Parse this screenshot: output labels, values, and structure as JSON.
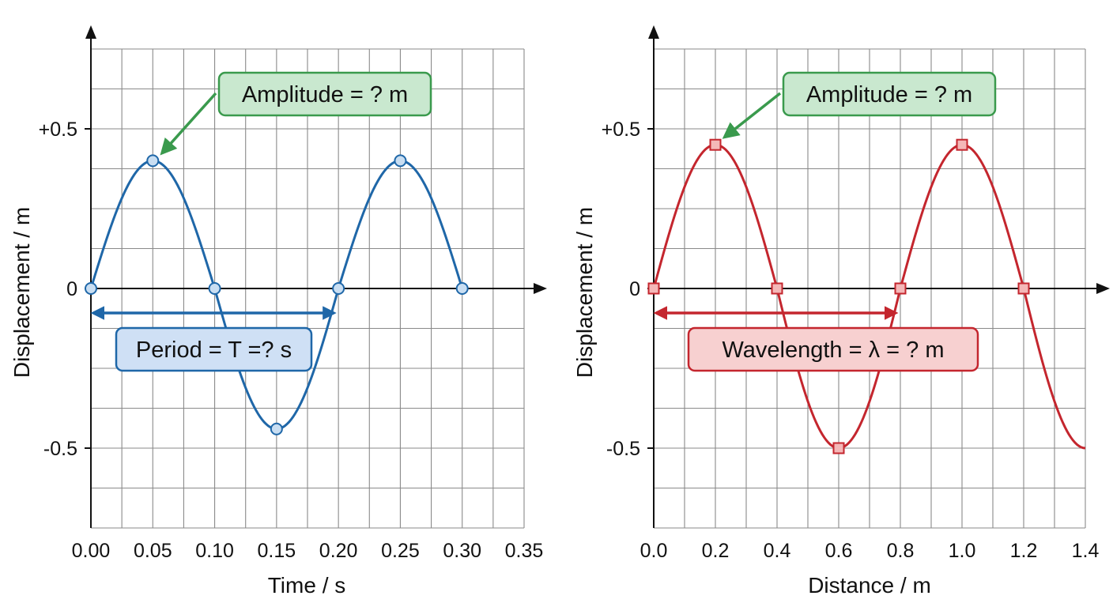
{
  "chart_data": [
    {
      "type": "line",
      "xlabel": "Time / s",
      "ylabel": "Displacement / m",
      "xlim": [
        0,
        0.35
      ],
      "ylim": [
        -0.75,
        0.75
      ],
      "x_ticks": [
        "0.00",
        "0.05",
        "0.10",
        "0.15",
        "0.20",
        "0.25",
        "0.30",
        "0.35"
      ],
      "y_ticks": [
        {
          "value": 0.5,
          "label": "+0.5"
        },
        {
          "value": 0,
          "label": "0"
        },
        {
          "value": -0.5,
          "label": "-0.5"
        }
      ],
      "grid": true,
      "series": [
        {
          "color": "#1f67a8",
          "marker": "circle",
          "x": [
            0.0,
            0.05,
            0.1,
            0.15,
            0.2,
            0.25,
            0.3
          ],
          "y": [
            0.0,
            0.4,
            0.0,
            -0.44,
            0.0,
            0.4,
            0.0
          ]
        }
      ],
      "annotations": [
        {
          "kind": "callout",
          "text": "Amplitude = ? m",
          "color": "#3a9a4d",
          "fill": "#c9e8cf",
          "target": [
            0.05,
            0.4
          ]
        },
        {
          "kind": "span",
          "text": "Period = T =? s",
          "color": "#1f67a8",
          "fill": "#cfe0f5",
          "from": 0.0,
          "to": 0.2
        }
      ]
    },
    {
      "type": "line",
      "xlabel": "Distance / m",
      "ylabel": "Displacement / m",
      "xlim": [
        0,
        1.4
      ],
      "ylim": [
        -0.75,
        0.75
      ],
      "x_ticks": [
        "0.0",
        "0.2",
        "0.4",
        "0.6",
        "0.8",
        "1.0",
        "1.2",
        "1.4"
      ],
      "y_ticks": [
        {
          "value": 0.5,
          "label": "+0.5"
        },
        {
          "value": 0,
          "label": "0"
        },
        {
          "value": -0.5,
          "label": "-0.5"
        }
      ],
      "grid": true,
      "series": [
        {
          "color": "#c4262e",
          "marker": "square",
          "x": [
            0.0,
            0.2,
            0.4,
            0.6,
            0.8,
            1.0,
            1.2,
            1.4
          ],
          "y": [
            0.0,
            0.45,
            0.0,
            -0.5,
            0.0,
            0.45,
            0.0,
            -0.5
          ],
          "marked": [
            true,
            true,
            true,
            true,
            true,
            true,
            true,
            false
          ]
        }
      ],
      "annotations": [
        {
          "kind": "callout",
          "text": "Amplitude = ? m",
          "color": "#3a9a4d",
          "fill": "#c9e8cf",
          "target": [
            0.2,
            0.45
          ]
        },
        {
          "kind": "span",
          "text": "Wavelength = λ = ? m",
          "color": "#c4262e",
          "fill": "#f7d0d0",
          "from": 0.0,
          "to": 0.8
        }
      ]
    }
  ]
}
